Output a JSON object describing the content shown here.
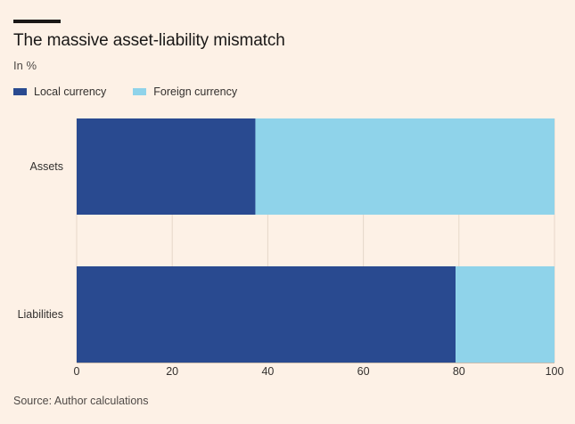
{
  "title": "The massive asset-liability mismatch",
  "subtitle": "In %",
  "source": "Source: Author calculations",
  "colors": {
    "local": "#294a90",
    "foreign": "#8fd3ea",
    "grid": "#e6d8c9",
    "background": "#fdf1e6"
  },
  "legend": [
    {
      "label": "Local currency",
      "color": "#294a90"
    },
    {
      "label": "Foreign currency",
      "color": "#8fd3ea"
    }
  ],
  "chart_data": {
    "type": "bar",
    "orientation": "horizontal",
    "stacked": true,
    "categories": [
      "Assets",
      "Liabilities"
    ],
    "series": [
      {
        "name": "Local currency",
        "values": [
          37.4,
          79.3
        ]
      },
      {
        "name": "Foreign currency",
        "values": [
          62.6,
          20.7
        ]
      }
    ],
    "xlim": [
      0,
      100
    ],
    "xticks": [
      0,
      20,
      40,
      60,
      80,
      100
    ],
    "grid": true,
    "legend_position": "top-left"
  }
}
